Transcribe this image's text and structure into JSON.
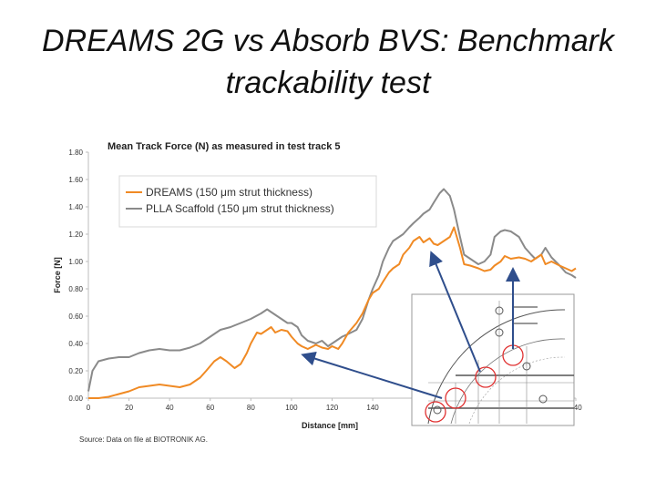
{
  "slide": {
    "title_line1": "DREAMS 2G vs Absorb BVS: Benchmark",
    "title_line2": "trackability test",
    "source": "Source: Data on file at BIOTRONIK AG."
  },
  "chart_data": {
    "type": "line",
    "title": "Mean Track Force (N) as measured in test track 5",
    "xlabel": "Distance [mm]",
    "ylabel": "Force [N]",
    "xlim": [
      0,
      240
    ],
    "ylim": [
      0,
      1.8
    ],
    "x_ticks": [
      "0",
      "20",
      "40",
      "60",
      "80",
      "100",
      "120",
      "140",
      "240"
    ],
    "y_ticks": [
      "0.00",
      "0.20",
      "0.40",
      "0.60",
      "0.80",
      "1.00",
      "1.20",
      "1.40",
      "1.60",
      "1.80"
    ],
    "legend_position": "top-left",
    "grid": false,
    "series": [
      {
        "name": "DREAMS (150 μm strut thickness)",
        "color": "#f08a24",
        "x": [
          0,
          5,
          10,
          15,
          20,
          25,
          30,
          35,
          40,
          45,
          50,
          55,
          58,
          62,
          65,
          68,
          72,
          75,
          78,
          80,
          83,
          85,
          88,
          90,
          92,
          95,
          98,
          100,
          103,
          105,
          108,
          112,
          115,
          118,
          120,
          123,
          125,
          128,
          132,
          135,
          138,
          140,
          143,
          145,
          148,
          150,
          153,
          155,
          158,
          160,
          163,
          165,
          168,
          170,
          172,
          175,
          178,
          180,
          183,
          185,
          188,
          192,
          195,
          198,
          200,
          203,
          205,
          208,
          212,
          215,
          218,
          220,
          223,
          225,
          228,
          232,
          235,
          238,
          240
        ],
        "values": [
          0.0,
          0.0,
          0.01,
          0.03,
          0.05,
          0.08,
          0.09,
          0.1,
          0.09,
          0.08,
          0.1,
          0.15,
          0.2,
          0.27,
          0.3,
          0.27,
          0.22,
          0.25,
          0.33,
          0.4,
          0.48,
          0.47,
          0.5,
          0.52,
          0.48,
          0.5,
          0.49,
          0.45,
          0.4,
          0.38,
          0.36,
          0.39,
          0.37,
          0.36,
          0.38,
          0.36,
          0.4,
          0.48,
          0.55,
          0.62,
          0.72,
          0.77,
          0.8,
          0.85,
          0.92,
          0.95,
          0.98,
          1.05,
          1.1,
          1.15,
          1.18,
          1.14,
          1.17,
          1.13,
          1.12,
          1.15,
          1.18,
          1.25,
          1.1,
          0.98,
          0.97,
          0.95,
          0.93,
          0.94,
          0.97,
          1.0,
          1.04,
          1.02,
          1.03,
          1.02,
          1.0,
          1.02,
          1.05,
          0.98,
          1.0,
          0.97,
          0.95,
          0.93,
          0.95
        ]
      },
      {
        "name": "PLLA Scaffold (150 μm strut thickness)",
        "color": "#8a8a8a",
        "x": [
          0,
          2,
          5,
          10,
          15,
          20,
          25,
          30,
          35,
          40,
          45,
          50,
          55,
          60,
          65,
          70,
          75,
          80,
          85,
          88,
          90,
          93,
          95,
          98,
          100,
          103,
          105,
          108,
          112,
          115,
          118,
          120,
          123,
          125,
          128,
          132,
          135,
          138,
          140,
          143,
          145,
          148,
          150,
          153,
          155,
          158,
          160,
          163,
          165,
          168,
          170,
          173,
          175,
          178,
          180,
          183,
          185,
          188,
          192,
          195,
          198,
          200,
          203,
          205,
          208,
          212,
          215,
          218,
          220,
          223,
          225,
          228,
          232,
          235,
          238,
          240
        ],
        "values": [
          0.05,
          0.2,
          0.27,
          0.29,
          0.3,
          0.3,
          0.33,
          0.35,
          0.36,
          0.35,
          0.35,
          0.37,
          0.4,
          0.45,
          0.5,
          0.52,
          0.55,
          0.58,
          0.62,
          0.65,
          0.63,
          0.6,
          0.58,
          0.55,
          0.55,
          0.52,
          0.46,
          0.42,
          0.4,
          0.42,
          0.38,
          0.4,
          0.43,
          0.45,
          0.47,
          0.5,
          0.58,
          0.72,
          0.8,
          0.9,
          1.0,
          1.1,
          1.15,
          1.18,
          1.2,
          1.25,
          1.28,
          1.32,
          1.35,
          1.38,
          1.43,
          1.5,
          1.53,
          1.48,
          1.38,
          1.18,
          1.05,
          1.02,
          0.98,
          1.0,
          1.05,
          1.18,
          1.22,
          1.23,
          1.22,
          1.18,
          1.1,
          1.05,
          1.02,
          1.05,
          1.1,
          1.03,
          0.97,
          0.92,
          0.9,
          0.88
        ]
      }
    ]
  }
}
